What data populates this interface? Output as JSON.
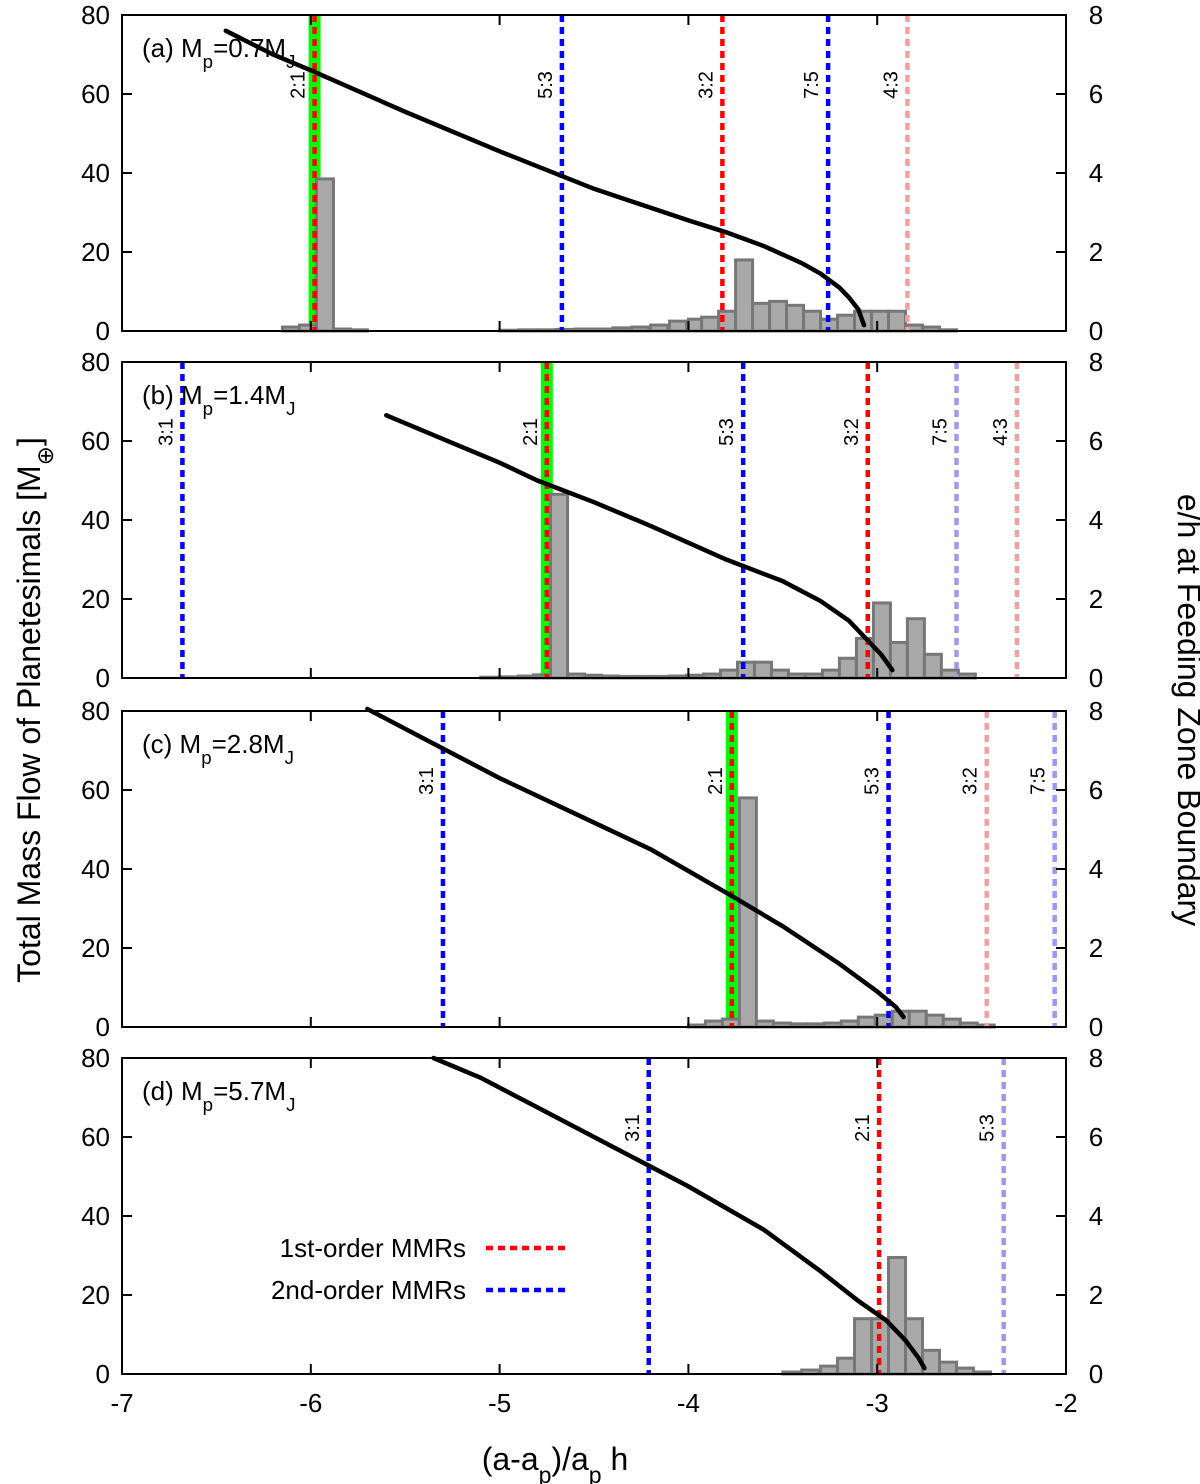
{
  "axes": {
    "xlabel": "(a-a_p)/a_p h",
    "ylabel_left": "Total Mass Flow of Planetesimals [M_⊕]",
    "ylabel_right": "e/h at Feeding Zone Boundary",
    "xlim": [
      -7,
      -2
    ],
    "ylim_left": [
      0,
      80
    ],
    "ylim_right": [
      0,
      8
    ],
    "xticks": [
      -7,
      -6,
      -5,
      -4,
      -3,
      -2
    ],
    "yticks_left": [
      0,
      20,
      40,
      60,
      80
    ],
    "yticks_right": [
      0,
      2,
      4,
      6,
      8
    ]
  },
  "colors": {
    "first_order": "#ff0000",
    "first_order_faded": "#f4a0a0",
    "second_order": "#0000ff",
    "second_order_faded": "#9a9af0",
    "highlight": "#00ff00",
    "bar_fill": "#a9a9a9",
    "bar_edge": "#777777",
    "curve": "#000000"
  },
  "legend": {
    "entries": [
      {
        "label": "1st-order MMRs",
        "order": 1
      },
      {
        "label": "2nd-order MMRs",
        "order": 2
      }
    ]
  },
  "chart_data": [
    {
      "type": "bar",
      "panel_label": "(a) M_p=0.7M_J",
      "highlight_x": -5.98,
      "mmrs": [
        {
          "label": "2:1",
          "x": -5.98,
          "order": 1,
          "faded": false
        },
        {
          "label": "5:3",
          "x": -4.67,
          "order": 2,
          "faded": false
        },
        {
          "label": "3:2",
          "x": -3.82,
          "order": 1,
          "faded": false
        },
        {
          "label": "7:5",
          "x": -3.26,
          "order": 2,
          "faded": false
        },
        {
          "label": "4:3",
          "x": -2.84,
          "order": 1,
          "faded": true
        }
      ],
      "bin_width": 0.09,
      "bins": [
        [
          -6.15,
          1
        ],
        [
          -6.06,
          1.5
        ],
        [
          -5.97,
          38.5
        ],
        [
          -5.88,
          0.5
        ],
        [
          -5.79,
          0.3
        ],
        [
          -5.0,
          0.2
        ],
        [
          -4.9,
          0.3
        ],
        [
          -4.8,
          0.3
        ],
        [
          -4.7,
          0.4
        ],
        [
          -4.6,
          0.5
        ],
        [
          -4.5,
          0.5
        ],
        [
          -4.4,
          0.8
        ],
        [
          -4.3,
          1
        ],
        [
          -4.2,
          1.5
        ],
        [
          -4.1,
          2.5
        ],
        [
          -4.0,
          3
        ],
        [
          -3.93,
          3.5
        ],
        [
          -3.84,
          5
        ],
        [
          -3.75,
          18
        ],
        [
          -3.66,
          7
        ],
        [
          -3.57,
          7.5
        ],
        [
          -3.48,
          6.5
        ],
        [
          -3.39,
          5
        ],
        [
          -3.3,
          3
        ],
        [
          -3.21,
          4
        ],
        [
          -3.12,
          5
        ],
        [
          -3.03,
          5
        ],
        [
          -2.94,
          5
        ],
        [
          -2.85,
          1.5
        ],
        [
          -2.76,
          1
        ],
        [
          -2.67,
          0.3
        ]
      ],
      "curve": [
        [
          -6.45,
          7.6
        ],
        [
          -6.2,
          7.0
        ],
        [
          -6.0,
          6.6
        ],
        [
          -5.5,
          5.55
        ],
        [
          -5.0,
          4.55
        ],
        [
          -4.5,
          3.6
        ],
        [
          -4.0,
          2.8
        ],
        [
          -3.8,
          2.5
        ],
        [
          -3.6,
          2.15
        ],
        [
          -3.4,
          1.72
        ],
        [
          -3.3,
          1.45
        ],
        [
          -3.2,
          1.1
        ],
        [
          -3.15,
          0.85
        ],
        [
          -3.1,
          0.55
        ],
        [
          -3.07,
          0.15
        ]
      ]
    },
    {
      "type": "bar",
      "panel_label": "(b) M_p=1.4M_J",
      "highlight_x": -4.75,
      "mmrs": [
        {
          "label": "3:1",
          "x": -6.68,
          "order": 2,
          "faded": false
        },
        {
          "label": "2:1",
          "x": -4.75,
          "order": 1,
          "faded": false
        },
        {
          "label": "5:3",
          "x": -3.71,
          "order": 2,
          "faded": false
        },
        {
          "label": "3:2",
          "x": -3.05,
          "order": 1,
          "faded": false
        },
        {
          "label": "7:5",
          "x": -2.58,
          "order": 2,
          "faded": true
        },
        {
          "label": "4:3",
          "x": -2.26,
          "order": 1,
          "faded": true
        }
      ],
      "bin_width": 0.09,
      "bins": [
        [
          -5.1,
          0.2
        ],
        [
          -5.0,
          0.3
        ],
        [
          -4.9,
          0.5
        ],
        [
          -4.82,
          0.8
        ],
        [
          -4.73,
          46.5
        ],
        [
          -4.64,
          1
        ],
        [
          -4.55,
          0.7
        ],
        [
          -4.46,
          0.5
        ],
        [
          -4.37,
          0.4
        ],
        [
          -4.28,
          0.4
        ],
        [
          -4.19,
          0.4
        ],
        [
          -4.1,
          0.5
        ],
        [
          -4.01,
          0.7
        ],
        [
          -3.92,
          1
        ],
        [
          -3.83,
          2
        ],
        [
          -3.74,
          4
        ],
        [
          -3.65,
          4
        ],
        [
          -3.56,
          2
        ],
        [
          -3.47,
          1
        ],
        [
          -3.38,
          1
        ],
        [
          -3.29,
          2
        ],
        [
          -3.2,
          5
        ],
        [
          -3.11,
          10
        ],
        [
          -3.02,
          19
        ],
        [
          -2.93,
          9
        ],
        [
          -2.84,
          15
        ],
        [
          -2.75,
          6
        ],
        [
          -2.66,
          2
        ],
        [
          -2.57,
          1
        ]
      ],
      "curve": [
        [
          -5.6,
          6.65
        ],
        [
          -5.2,
          5.85
        ],
        [
          -5.0,
          5.45
        ],
        [
          -4.8,
          5.0
        ],
        [
          -4.5,
          4.45
        ],
        [
          -4.2,
          3.85
        ],
        [
          -3.8,
          3.0
        ],
        [
          -3.5,
          2.45
        ],
        [
          -3.3,
          1.95
        ],
        [
          -3.15,
          1.45
        ],
        [
          -3.05,
          0.95
        ],
        [
          -2.98,
          0.6
        ],
        [
          -2.92,
          0.2
        ]
      ]
    },
    {
      "type": "bar",
      "panel_label": "(c) M_p=2.8M_J",
      "highlight_x": -3.77,
      "mmrs": [
        {
          "label": "3:1",
          "x": -5.3,
          "order": 2,
          "faded": false
        },
        {
          "label": "2:1",
          "x": -3.77,
          "order": 1,
          "faded": false
        },
        {
          "label": "5:3",
          "x": -2.94,
          "order": 2,
          "faded": false
        },
        {
          "label": "3:2",
          "x": -2.42,
          "order": 1,
          "faded": true
        },
        {
          "label": "7:5",
          "x": -2.06,
          "order": 2,
          "faded": true
        }
      ],
      "bin_width": 0.09,
      "bins": [
        [
          -4.0,
          0.5
        ],
        [
          -3.91,
          1.5
        ],
        [
          -3.82,
          2
        ],
        [
          -3.73,
          58
        ],
        [
          -3.64,
          1.5
        ],
        [
          -3.55,
          1
        ],
        [
          -3.46,
          0.8
        ],
        [
          -3.37,
          0.8
        ],
        [
          -3.28,
          1
        ],
        [
          -3.19,
          1.5
        ],
        [
          -3.1,
          2.5
        ],
        [
          -3.01,
          3
        ],
        [
          -2.92,
          4
        ],
        [
          -2.83,
          4
        ],
        [
          -2.74,
          3
        ],
        [
          -2.65,
          2
        ],
        [
          -2.56,
          1
        ],
        [
          -2.47,
          0.5
        ]
      ],
      "curve": [
        [
          -5.7,
          8.05
        ],
        [
          -5.4,
          7.3
        ],
        [
          -5.0,
          6.3
        ],
        [
          -4.6,
          5.4
        ],
        [
          -4.2,
          4.5
        ],
        [
          -3.8,
          3.4
        ],
        [
          -3.5,
          2.55
        ],
        [
          -3.2,
          1.6
        ],
        [
          -3.0,
          0.9
        ],
        [
          -2.9,
          0.5
        ],
        [
          -2.86,
          0.25
        ]
      ]
    },
    {
      "type": "bar",
      "panel_label": "(d) M_p=5.7M_J",
      "highlight_x": null,
      "mmrs": [
        {
          "label": "3:1",
          "x": -4.21,
          "order": 2,
          "faded": false
        },
        {
          "label": "2:1",
          "x": -2.99,
          "order": 1,
          "faded": false
        },
        {
          "label": "5:3",
          "x": -2.33,
          "order": 2,
          "faded": true
        }
      ],
      "bin_width": 0.09,
      "bins": [
        [
          -3.5,
          0.5
        ],
        [
          -3.4,
          1
        ],
        [
          -3.3,
          2
        ],
        [
          -3.21,
          4
        ],
        [
          -3.12,
          14
        ],
        [
          -3.03,
          14
        ],
        [
          -2.94,
          29.5
        ],
        [
          -2.85,
          14
        ],
        [
          -2.76,
          6
        ],
        [
          -2.67,
          3
        ],
        [
          -2.58,
          1.5
        ],
        [
          -2.49,
          0.5
        ]
      ],
      "curve": [
        [
          -5.35,
          8.0
        ],
        [
          -5.1,
          7.5
        ],
        [
          -4.8,
          6.75
        ],
        [
          -4.4,
          5.75
        ],
        [
          -4.0,
          4.75
        ],
        [
          -3.6,
          3.65
        ],
        [
          -3.3,
          2.6
        ],
        [
          -3.1,
          1.85
        ],
        [
          -2.95,
          1.35
        ],
        [
          -2.85,
          0.85
        ],
        [
          -2.78,
          0.4
        ],
        [
          -2.75,
          0.15
        ]
      ]
    }
  ]
}
